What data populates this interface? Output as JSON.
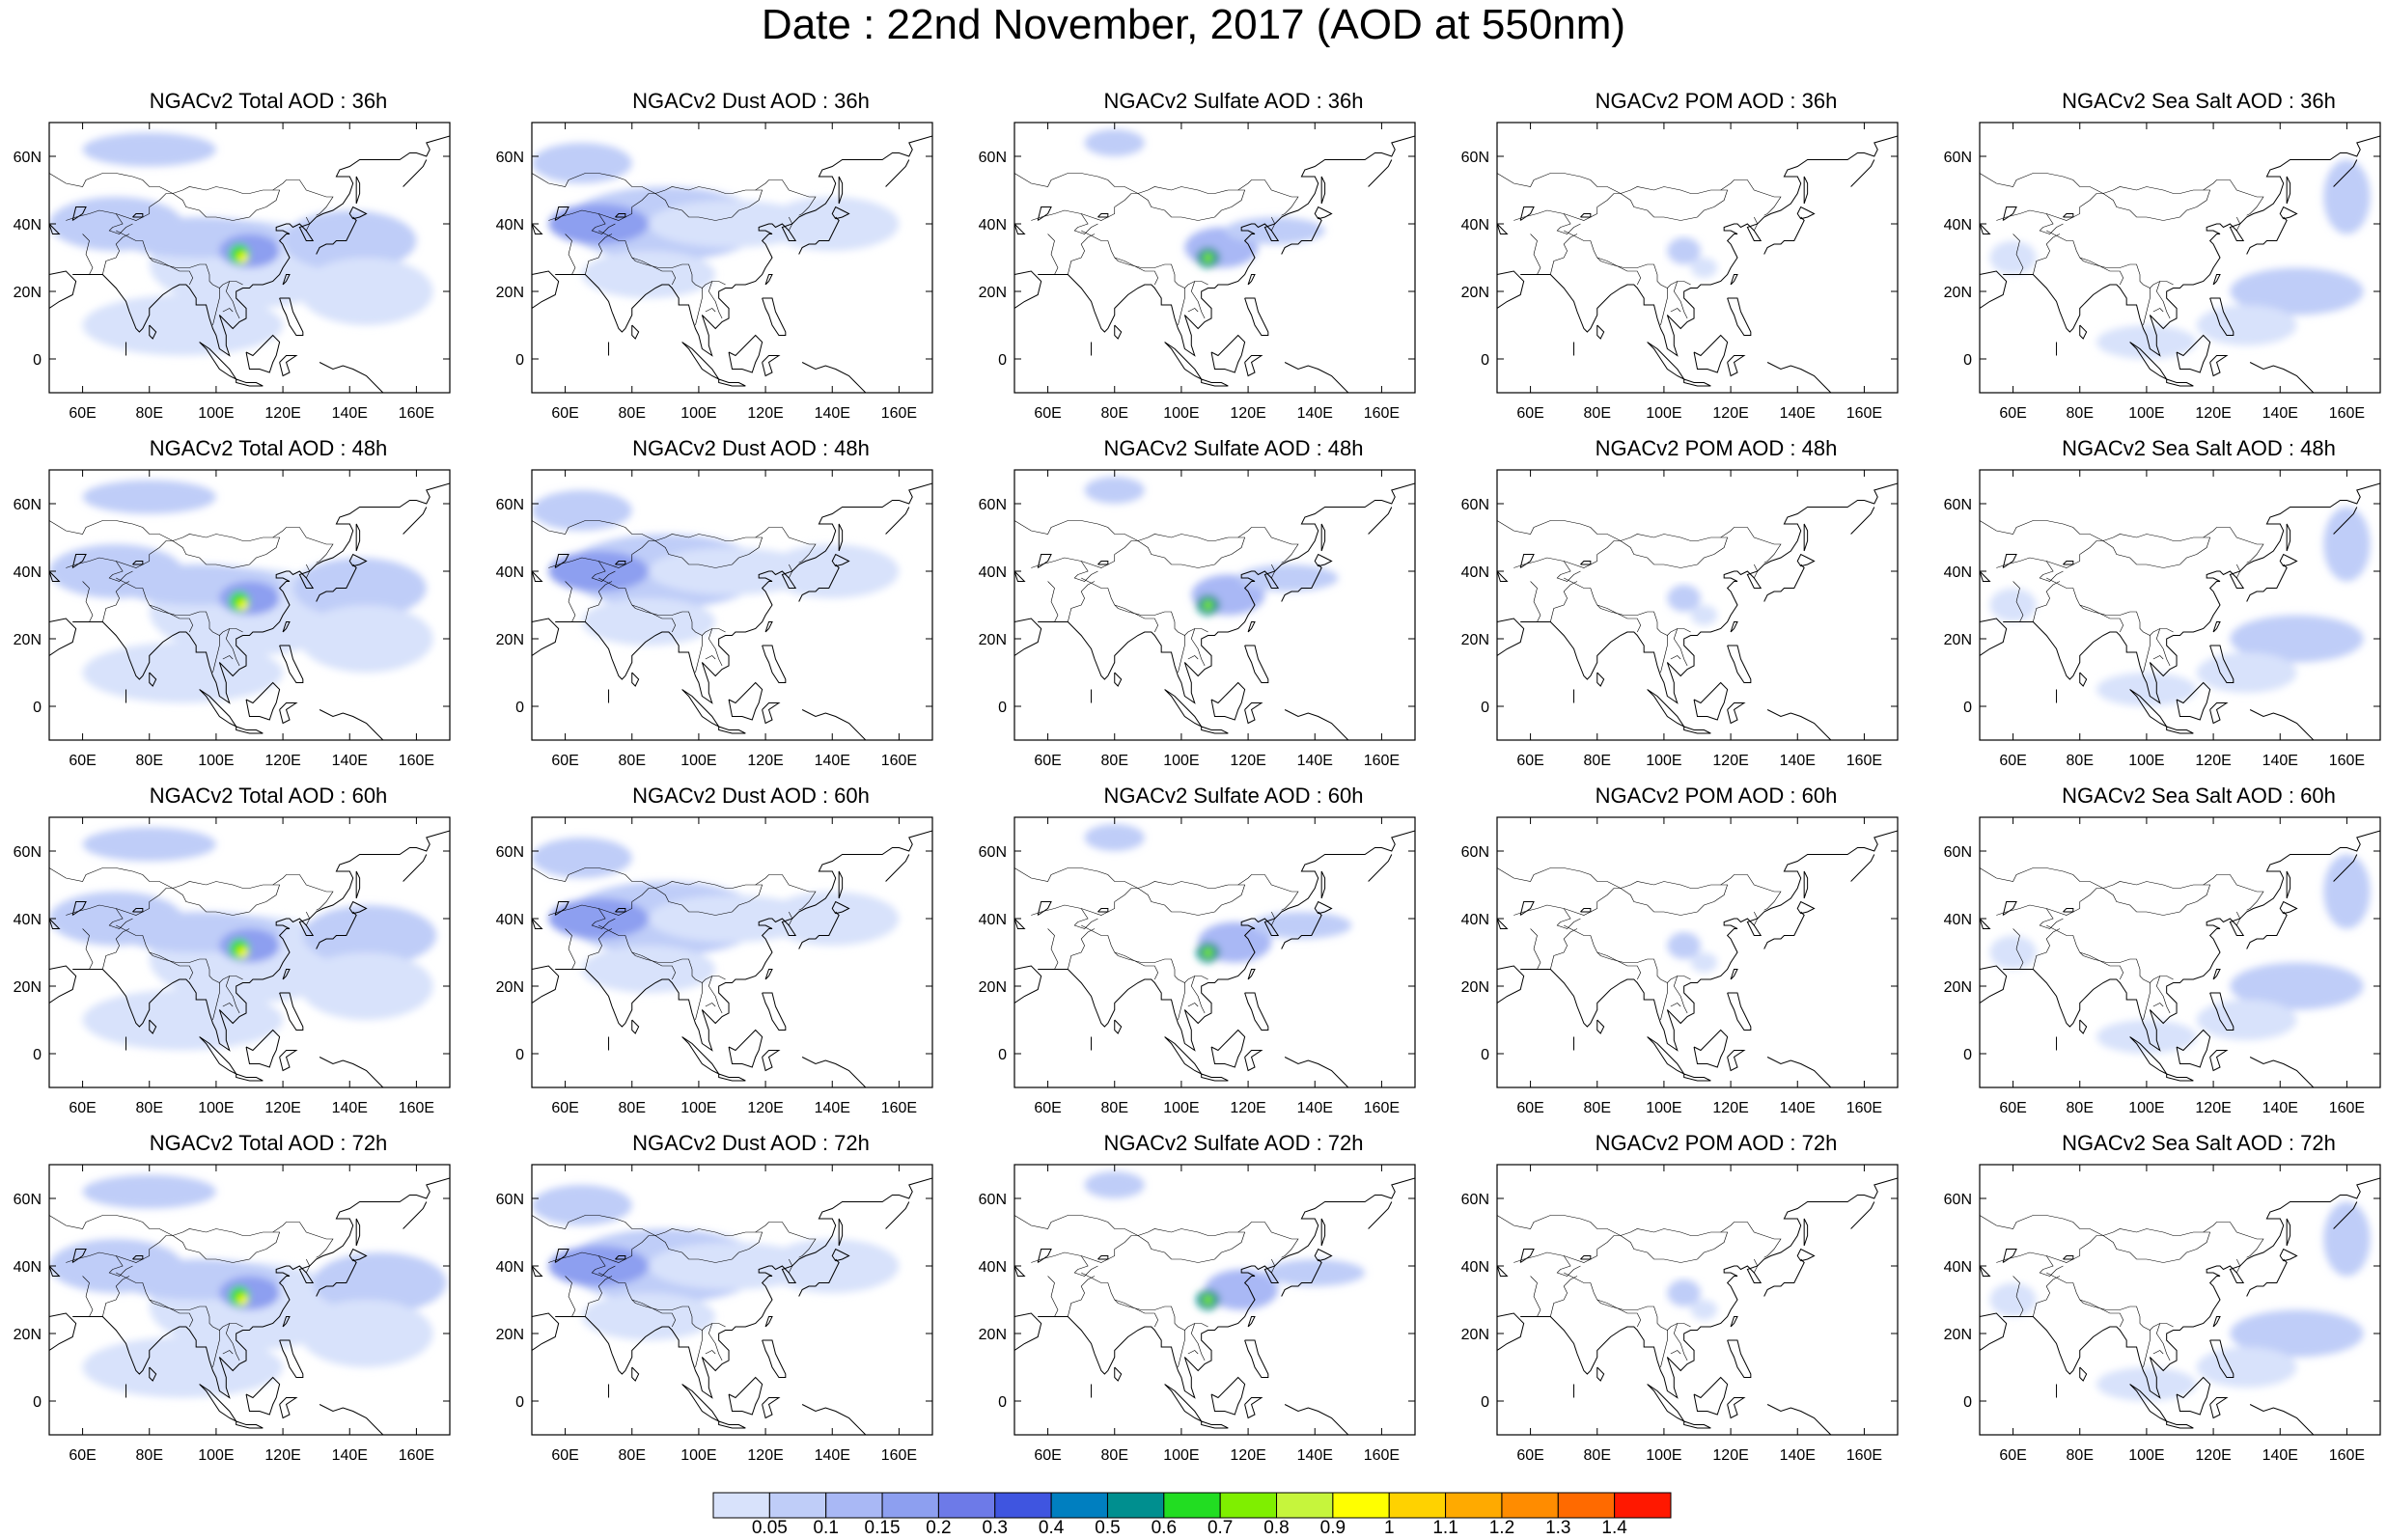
{
  "title": "Date : 22nd November, 2017 (AOD at 550nm)",
  "panels": [
    {
      "title": "NGACv2 Total AOD : 36h"
    },
    {
      "title": "NGACv2 Dust AOD : 36h"
    },
    {
      "title": "NGACv2 Sulfate AOD : 36h"
    },
    {
      "title": "NGACv2 POM AOD : 36h"
    },
    {
      "title": "NGACv2 Sea Salt AOD : 36h"
    },
    {
      "title": "NGACv2 Total AOD : 48h"
    },
    {
      "title": "NGACv2 Dust AOD : 48h"
    },
    {
      "title": "NGACv2 Sulfate AOD : 48h"
    },
    {
      "title": "NGACv2 POM AOD : 48h"
    },
    {
      "title": "NGACv2 Sea Salt AOD : 48h"
    },
    {
      "title": "NGACv2 Total AOD : 60h"
    },
    {
      "title": "NGACv2 Dust AOD : 60h"
    },
    {
      "title": "NGACv2 Sulfate AOD : 60h"
    },
    {
      "title": "NGACv2 POM AOD : 60h"
    },
    {
      "title": "NGACv2 Sea Salt AOD : 60h"
    },
    {
      "title": "NGACv2 Total AOD : 72h"
    },
    {
      "title": "NGACv2 Dust AOD : 72h"
    },
    {
      "title": "NGACv2 Sulfate AOD : 72h"
    },
    {
      "title": "NGACv2 POM AOD : 72h"
    },
    {
      "title": "NGACv2 Sea Salt  AOD : 72h"
    }
  ],
  "lat_ticks": [
    "60N",
    "40N",
    "20N",
    "0"
  ],
  "lon_ticks": [
    "60E",
    "80E",
    "100E",
    "120E",
    "140E",
    "160E"
  ],
  "colorbar": {
    "colors": [
      "#ffffff",
      "#d8e2fb",
      "#bfcdf8",
      "#a9b8f5",
      "#8d9ff0",
      "#6d7ae8",
      "#3f55e0",
      "#007fc0",
      "#008f8f",
      "#22dd22",
      "#7fef00",
      "#c6f53c",
      "#ffff00",
      "#ffd200",
      "#ffaa00",
      "#ff8c00",
      "#ff6a00",
      "#ff1800"
    ],
    "labels": [
      "0.05",
      "0.1",
      "0.15",
      "0.2",
      "0.3",
      "0.4",
      "0.5",
      "0.6",
      "0.7",
      "0.8",
      "0.9",
      "1",
      "1.1",
      "1.2",
      "1.3",
      "1.4"
    ]
  }
}
